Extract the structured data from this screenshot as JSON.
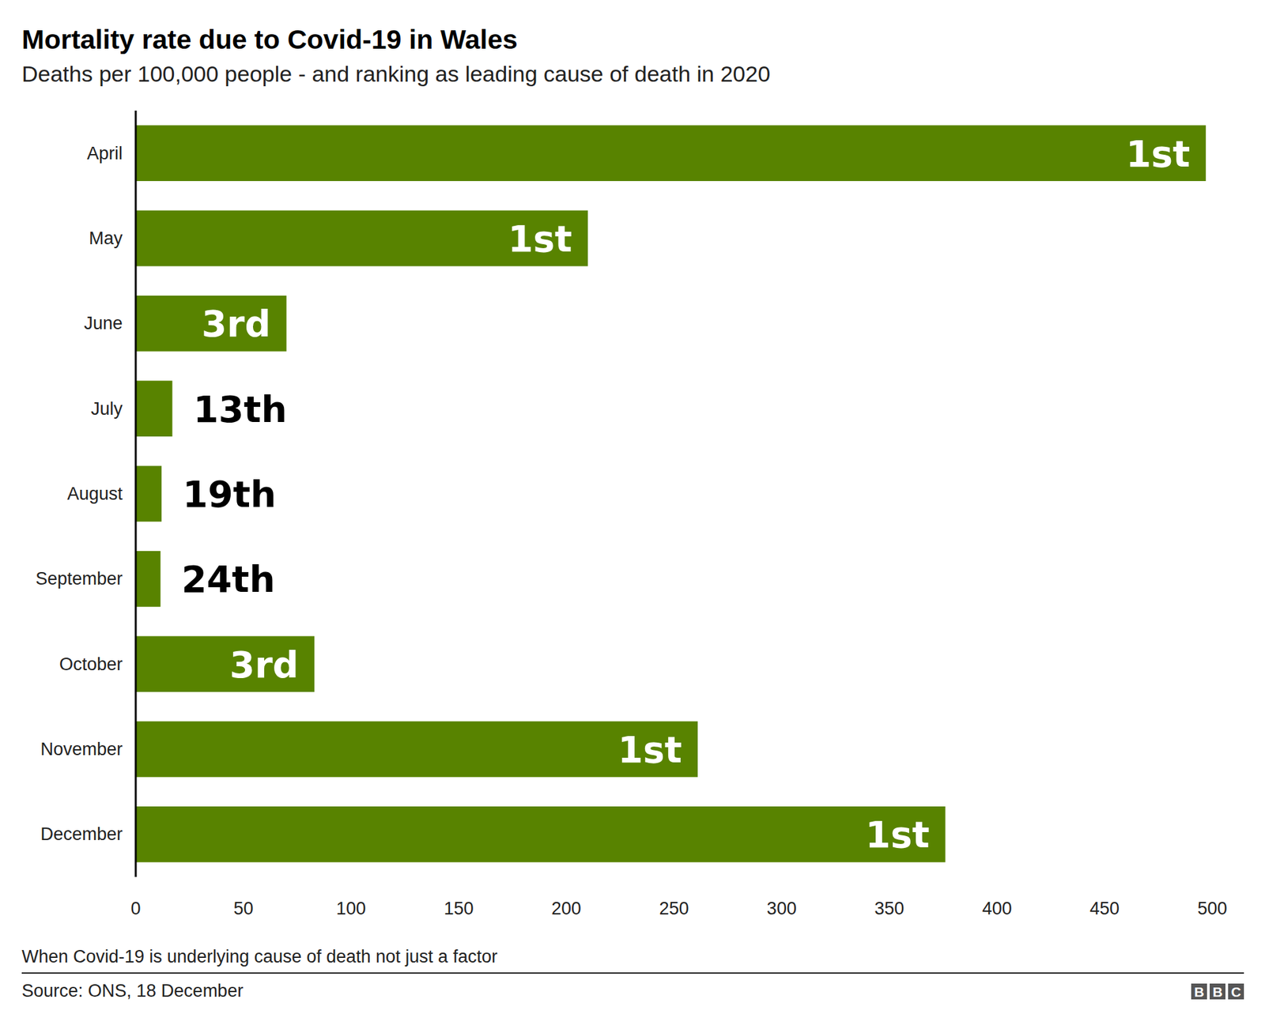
{
  "chart_data": {
    "type": "bar",
    "orientation": "horizontal",
    "title": "Mortality rate due to Covid-19 in Wales",
    "subtitle": "Deaths per 100,000 people - and ranking as leading cause of death in 2020",
    "categories": [
      "April",
      "May",
      "June",
      "July",
      "August",
      "September",
      "October",
      "November",
      "December"
    ],
    "values": [
      497,
      210,
      70,
      17,
      12,
      11.5,
      83,
      261,
      376
    ],
    "annotations": [
      "1st",
      "1st",
      "3rd",
      "13th",
      "19th",
      "24th",
      "3rd",
      "1st",
      "1st"
    ],
    "color": "#588300",
    "xlim": [
      0,
      500
    ],
    "xticks": [
      0,
      50,
      100,
      150,
      200,
      250,
      300,
      350,
      400,
      450,
      500
    ],
    "grid": false,
    "note": "When Covid-19 is underlying cause of death not just a factor",
    "source": "Source: ONS, 18 December",
    "logo": "BBC"
  }
}
